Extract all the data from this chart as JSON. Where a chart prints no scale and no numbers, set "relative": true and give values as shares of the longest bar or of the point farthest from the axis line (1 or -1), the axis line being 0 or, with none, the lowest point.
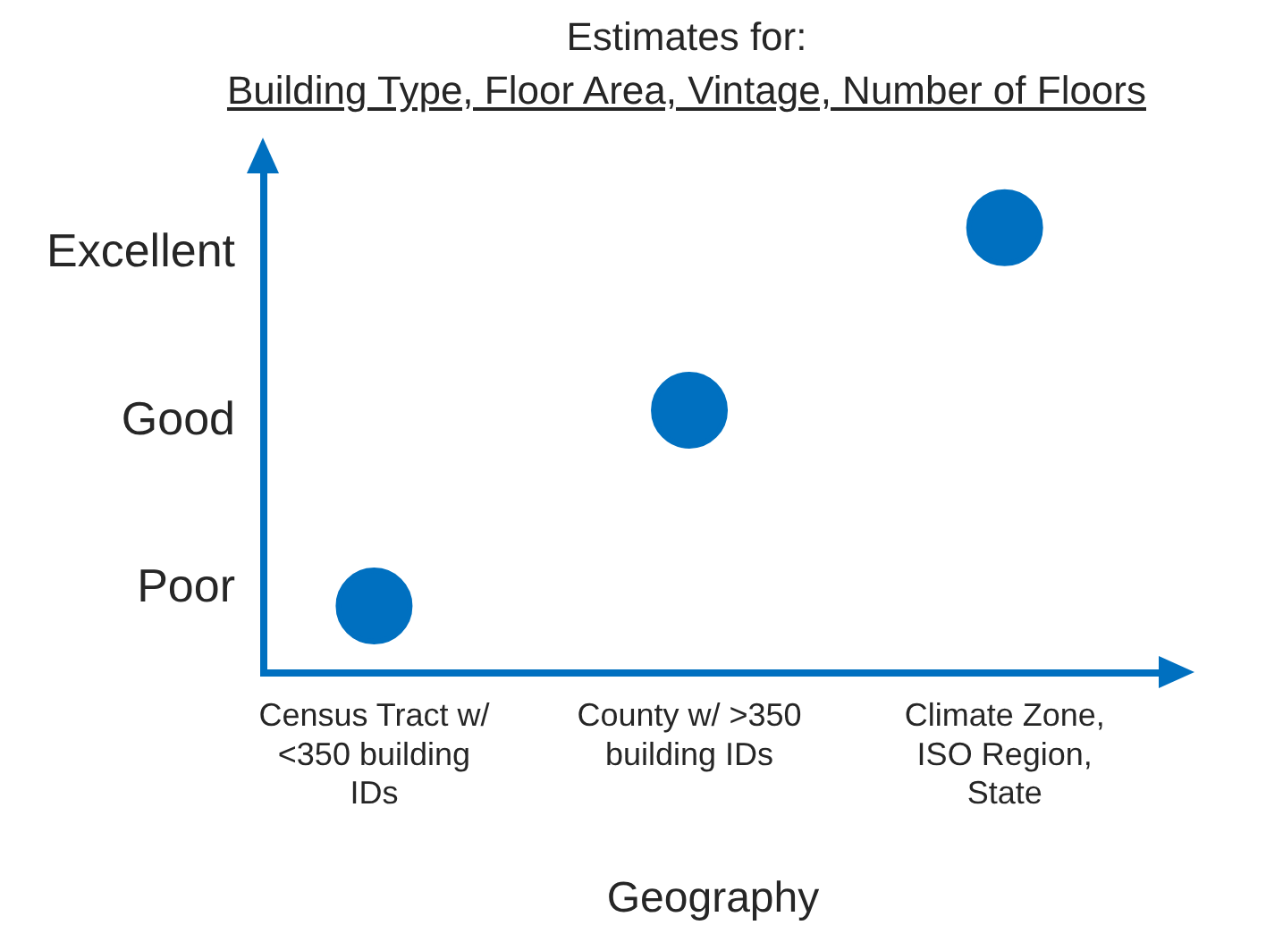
{
  "chart_data": {
    "type": "scatter",
    "title": "Estimates for:",
    "subtitle": "Building Type, Floor Area, Vintage, Number of Floors",
    "xlabel": "Geography",
    "categories": [
      "Census Tract w/ <350 building IDs",
      "County w/ >350 building IDs",
      "Climate Zone, ISO Region, State"
    ],
    "y_categories": [
      "Excellent",
      "Good",
      "Poor"
    ],
    "relative": true,
    "series": [
      {
        "color": "#0070c0",
        "values": [
          0.15,
          0.59,
          1
        ]
      }
    ],
    "grid": false,
    "legend": false,
    "marker": "circle"
  }
}
